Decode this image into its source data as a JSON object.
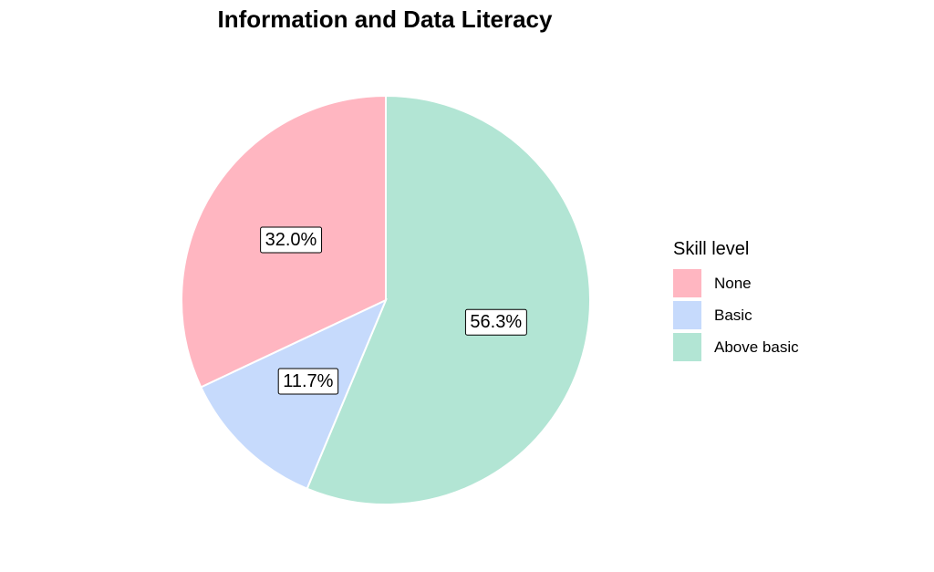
{
  "chart_data": {
    "type": "pie",
    "title": "Information and Data Literacy",
    "legend_title": "Skill level",
    "legend_position": "right",
    "slices": [
      {
        "name": "None",
        "value": 32.0,
        "label": "32.0%",
        "color": "#FFB6C1"
      },
      {
        "name": "Basic",
        "value": 11.7,
        "label": "11.7%",
        "color": "#C6DAFC"
      },
      {
        "name": "Above basic",
        "value": 56.3,
        "label": "56.3%",
        "color": "#B2E5D4"
      }
    ]
  }
}
